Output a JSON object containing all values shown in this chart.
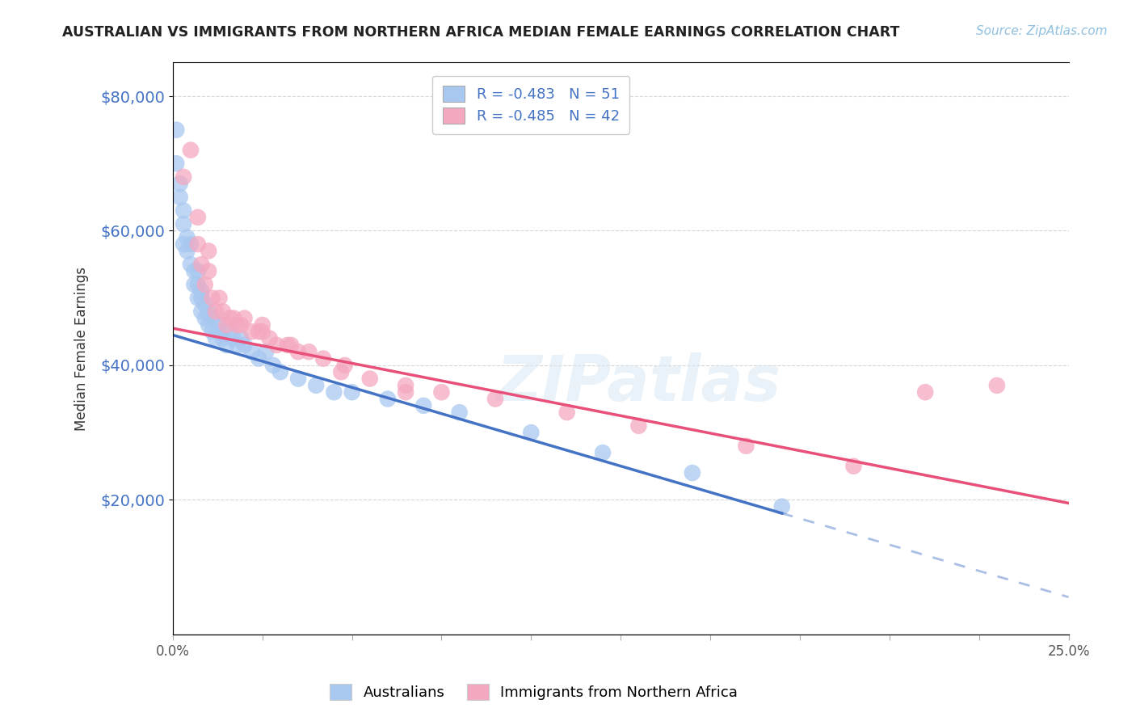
{
  "title": "AUSTRALIAN VS IMMIGRANTS FROM NORTHERN AFRICA MEDIAN FEMALE EARNINGS CORRELATION CHART",
  "source": "Source: ZipAtlas.com",
  "ylabel": "Median Female Earnings",
  "xlim": [
    0.0,
    0.25
  ],
  "ylim": [
    0,
    85000
  ],
  "yticks": [
    20000,
    40000,
    60000,
    80000
  ],
  "ytick_labels": [
    "$20,000",
    "$40,000",
    "$60,000",
    "$80,000"
  ],
  "xticks": [
    0.0,
    0.025,
    0.05,
    0.075,
    0.1,
    0.125,
    0.15,
    0.175,
    0.2,
    0.225,
    0.25
  ],
  "xtick_labels": [
    "0.0%",
    "",
    "",
    "",
    "",
    "",
    "",
    "",
    "",
    "",
    "25.0%"
  ],
  "color_blue": "#A8C8F0",
  "color_pink": "#F4A8C0",
  "color_blue_line": "#4472C4",
  "color_pink_line": "#E8507A",
  "color_blue_text": "#4472C4",
  "watermark_text": "ZIPatlas",
  "background_color": "#FFFFFF",
  "legend_label1": "Australians",
  "legend_label2": "Immigrants from Northern Africa",
  "legend_r1": "-0.483",
  "legend_n1": "51",
  "legend_r2": "-0.485",
  "legend_n2": "42",
  "aus_line_x0": 0.0,
  "aus_line_y0": 44500,
  "aus_line_x1": 0.17,
  "aus_line_y1": 18000,
  "imm_line_x0": 0.0,
  "imm_line_y0": 45500,
  "imm_line_x1": 0.25,
  "imm_line_y1": 19500,
  "australians_x": [
    0.001,
    0.001,
    0.002,
    0.002,
    0.003,
    0.003,
    0.003,
    0.004,
    0.004,
    0.005,
    0.005,
    0.006,
    0.006,
    0.007,
    0.007,
    0.007,
    0.008,
    0.008,
    0.008,
    0.009,
    0.009,
    0.01,
    0.01,
    0.011,
    0.011,
    0.012,
    0.013,
    0.013,
    0.014,
    0.015,
    0.016,
    0.017,
    0.018,
    0.019,
    0.02,
    0.022,
    0.024,
    0.026,
    0.028,
    0.03,
    0.035,
    0.04,
    0.045,
    0.05,
    0.06,
    0.07,
    0.08,
    0.1,
    0.12,
    0.145,
    0.17
  ],
  "australians_y": [
    75000,
    70000,
    65000,
    67000,
    58000,
    61000,
    63000,
    57000,
    59000,
    55000,
    58000,
    52000,
    54000,
    50000,
    52000,
    54000,
    48000,
    50000,
    51000,
    47000,
    49000,
    46000,
    48000,
    45000,
    47000,
    44000,
    45000,
    46000,
    44000,
    43000,
    45000,
    44000,
    43000,
    44000,
    43000,
    42000,
    41000,
    42000,
    40000,
    39000,
    38000,
    37000,
    36000,
    36000,
    35000,
    34000,
    33000,
    30000,
    27000,
    24000,
    19000
  ],
  "immigrants_x": [
    0.003,
    0.005,
    0.007,
    0.007,
    0.008,
    0.009,
    0.01,
    0.01,
    0.011,
    0.012,
    0.013,
    0.014,
    0.015,
    0.016,
    0.017,
    0.018,
    0.019,
    0.02,
    0.022,
    0.024,
    0.025,
    0.027,
    0.029,
    0.032,
    0.035,
    0.038,
    0.042,
    0.048,
    0.055,
    0.065,
    0.075,
    0.09,
    0.11,
    0.13,
    0.16,
    0.19,
    0.21,
    0.23,
    0.025,
    0.033,
    0.047,
    0.065
  ],
  "immigrants_y": [
    68000,
    72000,
    62000,
    58000,
    55000,
    52000,
    57000,
    54000,
    50000,
    48000,
    50000,
    48000,
    46000,
    47000,
    47000,
    46000,
    46000,
    47000,
    45000,
    45000,
    46000,
    44000,
    43000,
    43000,
    42000,
    42000,
    41000,
    40000,
    38000,
    37000,
    36000,
    35000,
    33000,
    31000,
    28000,
    25000,
    36000,
    37000,
    45000,
    43000,
    39000,
    36000
  ]
}
